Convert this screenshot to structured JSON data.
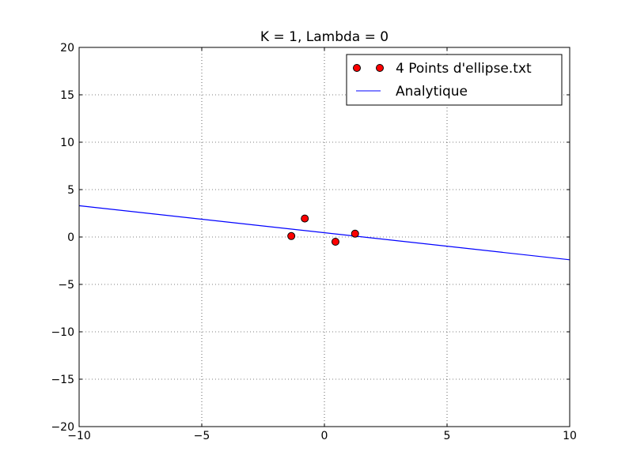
{
  "chart_data": {
    "type": "scatter",
    "title": "K = 1, Lambda = 0",
    "xlabel": "",
    "ylabel": "",
    "xlim": [
      -10,
      10
    ],
    "ylim": [
      -20,
      20
    ],
    "x_ticks": [
      -10,
      -5,
      0,
      5,
      10
    ],
    "y_ticks": [
      -20,
      -15,
      -10,
      -5,
      0,
      5,
      10,
      15,
      20
    ],
    "x_tick_labels": [
      "−10",
      "−5",
      "0",
      "5",
      "10"
    ],
    "y_tick_labels": [
      "−20",
      "−15",
      "−10",
      "−5",
      "0",
      "5",
      "10",
      "15",
      "20"
    ],
    "grid": true,
    "legend_position": "top-right",
    "series": [
      {
        "name": "4 Points d'ellipse.txt",
        "kind": "markers",
        "color": "#ff0000",
        "x": [
          -1.35,
          -0.8,
          0.45,
          1.25
        ],
        "y": [
          0.1,
          1.95,
          -0.5,
          0.35
        ]
      },
      {
        "name": "Analytique",
        "kind": "line",
        "color": "#0000ff",
        "x": [
          -10,
          10
        ],
        "y": [
          3.3,
          -2.4
        ]
      }
    ]
  }
}
